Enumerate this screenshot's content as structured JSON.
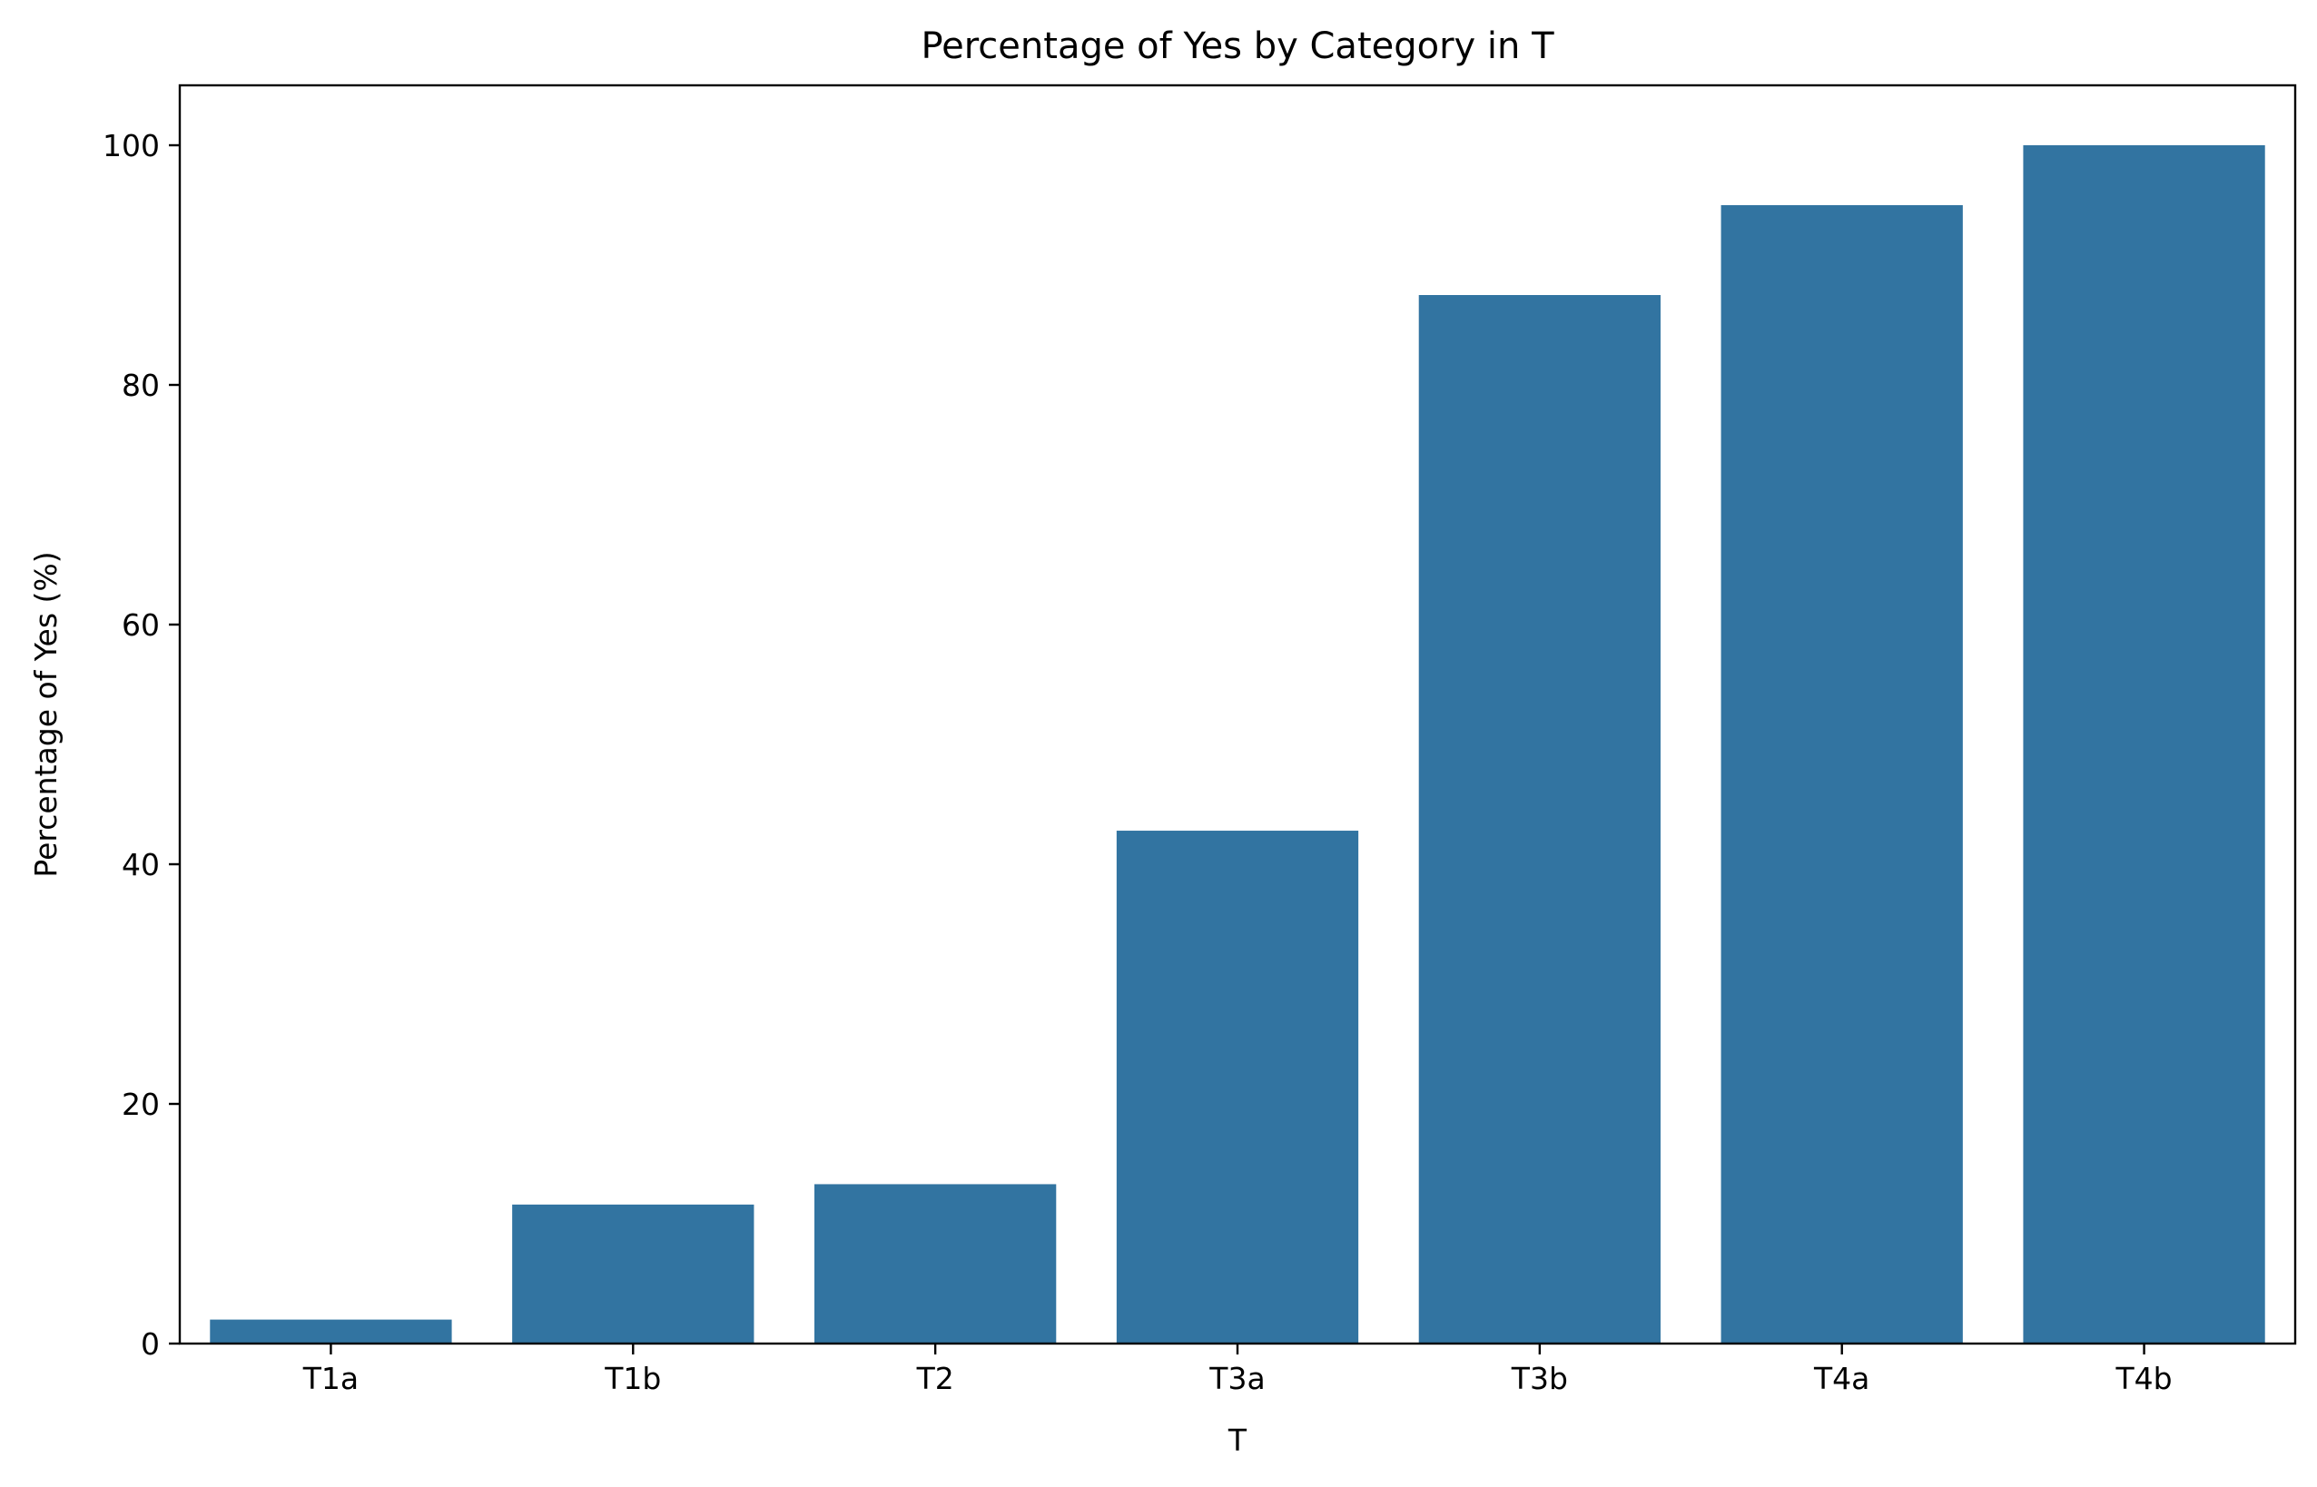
{
  "chart_data": {
    "type": "bar",
    "title": "Percentage of Yes by Category in T",
    "xlabel": "T",
    "ylabel": "Percentage of Yes (%)",
    "categories": [
      "T1a",
      "T1b",
      "T2",
      "T3a",
      "T3b",
      "T4a",
      "T4b"
    ],
    "values": [
      2.0,
      11.6,
      13.3,
      42.8,
      87.5,
      95.0,
      100.0
    ],
    "ylim": [
      0,
      105
    ],
    "yticks": [
      0,
      20,
      40,
      60,
      80,
      100
    ],
    "grid": false,
    "legend": "none",
    "bar_color": "#3274a1"
  }
}
